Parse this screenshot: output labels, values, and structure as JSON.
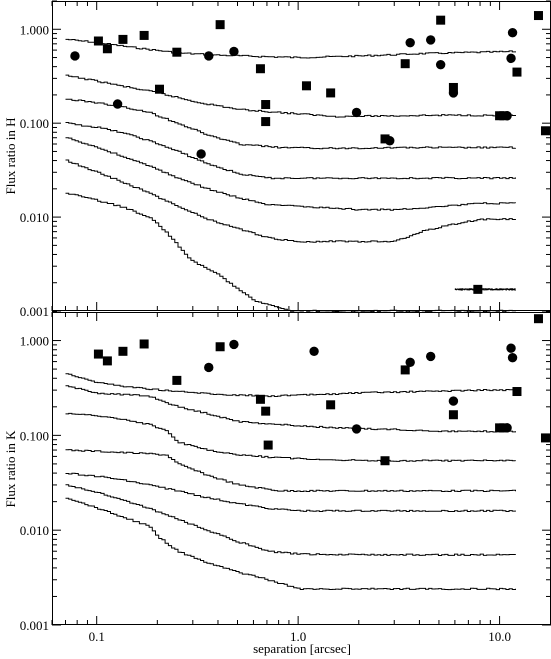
{
  "chart_data": [
    {
      "type": "line",
      "panel": "top",
      "ylabel": "Flux ratio in H",
      "xlabel": "",
      "xscale": "log",
      "yscale": "log",
      "xlim": [
        0.06,
        18
      ],
      "ylim": [
        0.001,
        2
      ],
      "yticks": [
        "0.001",
        "0.010",
        "0.100",
        "1.000"
      ],
      "xticks": [
        "0.1",
        "1.0",
        "10.0"
      ],
      "marker_color": "#000000",
      "squares": [
        [
          0.102,
          0.75
        ],
        [
          0.113,
          0.62
        ],
        [
          0.135,
          0.78
        ],
        [
          0.172,
          0.86
        ],
        [
          0.205,
          0.23
        ],
        [
          0.25,
          0.57
        ],
        [
          0.41,
          1.12
        ],
        [
          0.65,
          0.38
        ],
        [
          0.69,
          0.158
        ],
        [
          0.69,
          0.104
        ],
        [
          1.1,
          0.25
        ],
        [
          1.45,
          0.21
        ],
        [
          2.7,
          0.068
        ],
        [
          3.4,
          0.43
        ],
        [
          5.1,
          1.25
        ],
        [
          5.9,
          0.24
        ],
        [
          10.0,
          0.12
        ],
        [
          10.5,
          0.12
        ],
        [
          12.2,
          0.35
        ],
        [
          15.6,
          1.4
        ],
        [
          16.9,
          0.083
        ],
        [
          7.8,
          0.0017
        ]
      ],
      "circles": [
        [
          0.078,
          0.52
        ],
        [
          0.127,
          0.16
        ],
        [
          0.33,
          0.047
        ],
        [
          0.36,
          0.52
        ],
        [
          0.48,
          0.58
        ],
        [
          1.95,
          0.13
        ],
        [
          2.85,
          0.065
        ],
        [
          3.6,
          0.72
        ],
        [
          4.55,
          0.77
        ],
        [
          5.1,
          0.42
        ],
        [
          5.9,
          0.21
        ],
        [
          10.9,
          0.12
        ],
        [
          11.4,
          0.49
        ],
        [
          11.6,
          0.92
        ]
      ],
      "series": [
        {
          "x": [
            0.07,
            0.1,
            0.15,
            0.25,
            0.4,
            0.7,
            1.0,
            2.0,
            4.0,
            8.0,
            12.0
          ],
          "y": [
            0.78,
            0.72,
            0.64,
            0.56,
            0.53,
            0.51,
            0.5,
            0.52,
            0.55,
            0.57,
            0.58
          ]
        },
        {
          "x": [
            0.07,
            0.1,
            0.13,
            0.2,
            0.3,
            0.5,
            0.8,
            1.5,
            3.0,
            6.0,
            12.0
          ],
          "y": [
            0.32,
            0.28,
            0.25,
            0.21,
            0.17,
            0.14,
            0.13,
            0.118,
            0.12,
            0.122,
            0.12
          ]
        },
        {
          "x": [
            0.07,
            0.1,
            0.13,
            0.18,
            0.25,
            0.35,
            0.5,
            0.8,
            1.5,
            3.0,
            6.0,
            12.0
          ],
          "y": [
            0.18,
            0.165,
            0.15,
            0.13,
            0.1,
            0.075,
            0.06,
            0.055,
            0.054,
            0.055,
            0.055,
            0.055
          ]
        },
        {
          "x": [
            0.07,
            0.1,
            0.13,
            0.18,
            0.25,
            0.35,
            0.5,
            0.7,
            1.0,
            2.0,
            4.0,
            8.0,
            12.0
          ],
          "y": [
            0.1,
            0.09,
            0.08,
            0.065,
            0.05,
            0.037,
            0.029,
            0.026,
            0.026,
            0.026,
            0.026,
            0.026,
            0.026
          ]
        },
        {
          "x": [
            0.07,
            0.1,
            0.13,
            0.18,
            0.25,
            0.35,
            0.5,
            0.7,
            1.0,
            2.0,
            3.0,
            5.0,
            8.0,
            12.0
          ],
          "y": [
            0.07,
            0.055,
            0.045,
            0.035,
            0.026,
            0.02,
            0.016,
            0.0135,
            0.013,
            0.012,
            0.012,
            0.013,
            0.014,
            0.014
          ]
        },
        {
          "x": [
            0.07,
            0.1,
            0.13,
            0.18,
            0.25,
            0.35,
            0.5,
            0.7,
            1.0,
            2.0,
            3.0,
            4.0,
            6.0,
            8.0,
            12.0
          ],
          "y": [
            0.04,
            0.03,
            0.024,
            0.018,
            0.013,
            0.0095,
            0.0075,
            0.006,
            0.0055,
            0.0055,
            0.0055,
            0.007,
            0.0085,
            0.0095,
            0.0095
          ]
        },
        {
          "x": [
            0.07,
            0.1,
            0.13,
            0.18,
            0.21,
            0.25,
            0.29,
            0.4,
            0.6,
            0.9,
            1.4,
            4.0,
            12.0
          ],
          "y": [
            0.018,
            0.015,
            0.013,
            0.01,
            0.0075,
            0.005,
            0.0035,
            0.0024,
            0.0013,
            0.001,
            0.001,
            0.001,
            0.001
          ]
        },
        {
          "x": [
            6.0,
            8.0,
            12.0
          ],
          "y": [
            0.0017,
            0.0017,
            0.0017
          ]
        }
      ]
    },
    {
      "type": "line",
      "panel": "bottom",
      "ylabel": "Flux ratio in K",
      "xlabel": "separation [arcsec]",
      "xscale": "log",
      "yscale": "log",
      "xlim": [
        0.06,
        18
      ],
      "ylim": [
        0.001,
        2
      ],
      "yticks": [
        "0.001",
        "0.010",
        "0.100",
        "1.000"
      ],
      "xticks": [
        "0.1",
        "1.0",
        "10.0"
      ],
      "marker_color": "#000000",
      "squares": [
        [
          0.102,
          0.72
        ],
        [
          0.113,
          0.61
        ],
        [
          0.135,
          0.77
        ],
        [
          0.172,
          0.92
        ],
        [
          0.25,
          0.38
        ],
        [
          0.41,
          0.86
        ],
        [
          0.65,
          0.24
        ],
        [
          0.69,
          0.18
        ],
        [
          0.71,
          0.079
        ],
        [
          1.45,
          0.21
        ],
        [
          2.7,
          0.054
        ],
        [
          3.4,
          0.49
        ],
        [
          5.9,
          0.165
        ],
        [
          10.0,
          0.12
        ],
        [
          10.5,
          0.12
        ],
        [
          12.2,
          0.29
        ],
        [
          15.6,
          1.7
        ],
        [
          16.9,
          0.094
        ]
      ],
      "circles": [
        [
          0.36,
          0.52
        ],
        [
          0.48,
          0.91
        ],
        [
          1.2,
          0.77
        ],
        [
          1.95,
          0.117
        ],
        [
          3.6,
          0.59
        ],
        [
          4.55,
          0.68
        ],
        [
          5.9,
          0.23
        ],
        [
          10.9,
          0.12
        ],
        [
          11.4,
          0.83
        ],
        [
          11.6,
          0.66
        ]
      ],
      "series": [
        {
          "x": [
            0.07,
            0.1,
            0.15,
            0.25,
            0.4,
            0.7,
            1.0,
            2.0,
            4.0,
            8.0,
            12.0
          ],
          "y": [
            0.45,
            0.36,
            0.32,
            0.29,
            0.27,
            0.26,
            0.265,
            0.28,
            0.29,
            0.3,
            0.3
          ]
        },
        {
          "x": [
            0.07,
            0.1,
            0.13,
            0.18,
            0.25,
            0.35,
            0.5,
            0.8,
            1.5,
            3.0,
            6.0,
            12.0
          ],
          "y": [
            0.33,
            0.28,
            0.27,
            0.26,
            0.2,
            0.17,
            0.14,
            0.13,
            0.12,
            0.115,
            0.11,
            0.11
          ]
        },
        {
          "x": [
            0.07,
            0.1,
            0.13,
            0.18,
            0.22,
            0.25,
            0.35,
            0.5,
            0.8,
            1.5,
            3.0,
            6.0,
            12.0
          ],
          "y": [
            0.17,
            0.16,
            0.15,
            0.13,
            0.11,
            0.085,
            0.07,
            0.062,
            0.058,
            0.055,
            0.054,
            0.054,
            0.054
          ]
        },
        {
          "x": [
            0.07,
            0.1,
            0.13,
            0.18,
            0.22,
            0.25,
            0.35,
            0.5,
            0.8,
            1.5,
            3.0,
            6.0,
            12.0
          ],
          "y": [
            0.07,
            0.068,
            0.066,
            0.064,
            0.062,
            0.05,
            0.038,
            0.03,
            0.026,
            0.026,
            0.026,
            0.026,
            0.026
          ]
        },
        {
          "x": [
            0.07,
            0.1,
            0.13,
            0.18,
            0.25,
            0.35,
            0.5,
            0.7,
            1.0,
            2.0,
            4.0,
            8.0,
            12.0
          ],
          "y": [
            0.04,
            0.037,
            0.034,
            0.03,
            0.026,
            0.022,
            0.019,
            0.017,
            0.016,
            0.016,
            0.016,
            0.016,
            0.016
          ]
        },
        {
          "x": [
            0.07,
            0.1,
            0.13,
            0.18,
            0.25,
            0.35,
            0.5,
            0.7,
            1.0,
            2.0,
            4.0,
            8.0,
            12.0
          ],
          "y": [
            0.03,
            0.025,
            0.021,
            0.017,
            0.013,
            0.01,
            0.0075,
            0.006,
            0.0056,
            0.0055,
            0.0055,
            0.0055,
            0.0055
          ]
        },
        {
          "x": [
            0.07,
            0.1,
            0.13,
            0.18,
            0.2,
            0.25,
            0.35,
            0.5,
            0.7,
            1.0,
            2.0,
            4.0,
            8.0,
            12.0
          ],
          "y": [
            0.022,
            0.017,
            0.014,
            0.011,
            0.0085,
            0.006,
            0.0045,
            0.0036,
            0.003,
            0.0024,
            0.0024,
            0.0024,
            0.0024,
            0.0024
          ]
        }
      ]
    }
  ]
}
